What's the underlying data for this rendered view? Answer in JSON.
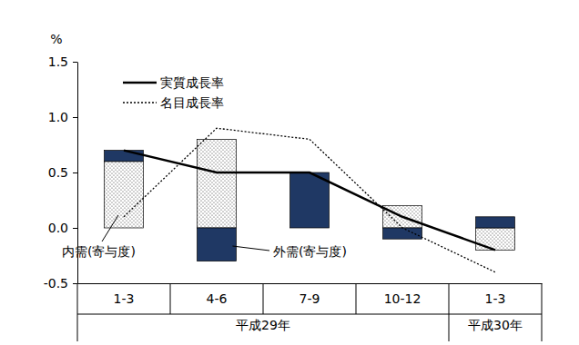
{
  "chart_data": {
    "type": "bar",
    "stacked": true,
    "y_label": "%",
    "categories": [
      "1-3",
      "4-6",
      "7-9",
      "10-12",
      "1-3"
    ],
    "group_labels": [
      "平成29年",
      "平成29年",
      "平成29年",
      "平成29年",
      "平成30年"
    ],
    "ylim": [
      -0.5,
      1.5
    ],
    "yticks": [
      {
        "value": -0.5,
        "label": "-0.5"
      },
      {
        "value": 0,
        "label": "0.0"
      },
      {
        "value": 0.5,
        "label": "0.5"
      },
      {
        "value": 1,
        "label": "1.0"
      },
      {
        "value": 1.5,
        "label": "1.5"
      }
    ],
    "legend": "upper left",
    "series": [
      {
        "name": "内需(寄与度)",
        "type": "bar",
        "color": "#ffffff",
        "values": [
          0.6,
          0.8,
          0.0,
          0.2,
          -0.2
        ]
      },
      {
        "name": "外需(寄与度)",
        "type": "bar",
        "color": "#1f3864",
        "values": [
          0.1,
          -0.3,
          0.5,
          -0.1,
          0.1
        ]
      },
      {
        "name": "実質成長率",
        "type": "line",
        "color": "#000000",
        "line_style": "solid",
        "values": [
          0.7,
          0.5,
          0.5,
          0.1,
          -0.2
        ]
      },
      {
        "name": "名目成長率",
        "type": "line",
        "color": "#000000",
        "line_style": "dotted",
        "values": [
          0.1,
          0.9,
          0.8,
          0.0,
          -0.4
        ]
      }
    ]
  }
}
